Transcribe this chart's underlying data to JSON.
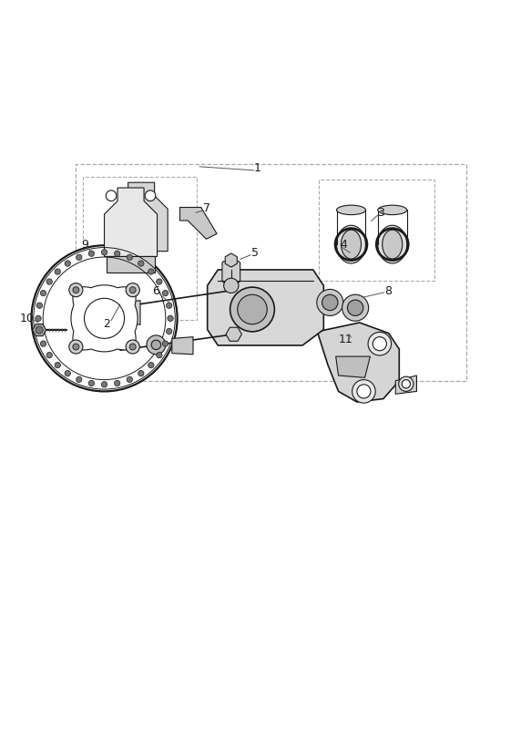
{
  "bg_color": "#ffffff",
  "line_color": "#1a1a1a",
  "fig_width": 5.83,
  "fig_height": 8.24
}
